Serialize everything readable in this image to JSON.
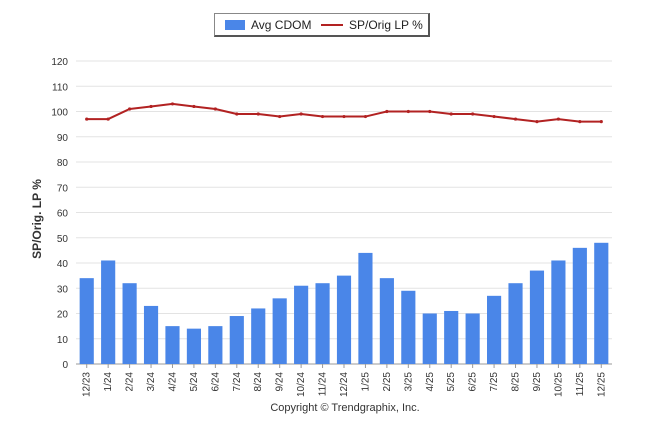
{
  "chart_data": {
    "type": "bar",
    "title": "",
    "xlabel": "",
    "ylabel": "SP/Orig. LP %",
    "ylim": [
      0,
      120
    ],
    "yticks": [
      "0",
      "10",
      "20",
      "30",
      "40",
      "50",
      "60",
      "70",
      "80",
      "90",
      "100",
      "110",
      "120"
    ],
    "grid": true,
    "legend_position": "top-center",
    "categories": [
      "12/23",
      "1/24",
      "2/24",
      "3/24",
      "4/24",
      "5/24",
      "6/24",
      "7/24",
      "8/24",
      "9/24",
      "10/24",
      "11/24",
      "12/24",
      "1/25",
      "2/25",
      "3/25",
      "4/25",
      "5/25",
      "6/25",
      "7/25",
      "8/25",
      "9/25",
      "10/25",
      "11/25",
      "12/25"
    ],
    "series": [
      {
        "name": "Avg CDOM",
        "kind": "bar",
        "color": "#4a86e8",
        "values": [
          34,
          41,
          32,
          23,
          15,
          14,
          15,
          19,
          22,
          26,
          31,
          32,
          35,
          44,
          34,
          29,
          20,
          21,
          20,
          27,
          32,
          37,
          41,
          46,
          48
        ]
      },
      {
        "name": "SP/Orig LP %",
        "kind": "line",
        "color": "#b22222",
        "values": [
          97,
          97,
          101,
          102,
          103,
          102,
          101,
          99,
          99,
          98,
          99,
          98,
          98,
          98,
          100,
          100,
          100,
          99,
          99,
          98,
          97,
          96,
          97,
          96,
          96
        ]
      }
    ],
    "annotation": "Copyright © Trendgraphix, Inc."
  }
}
